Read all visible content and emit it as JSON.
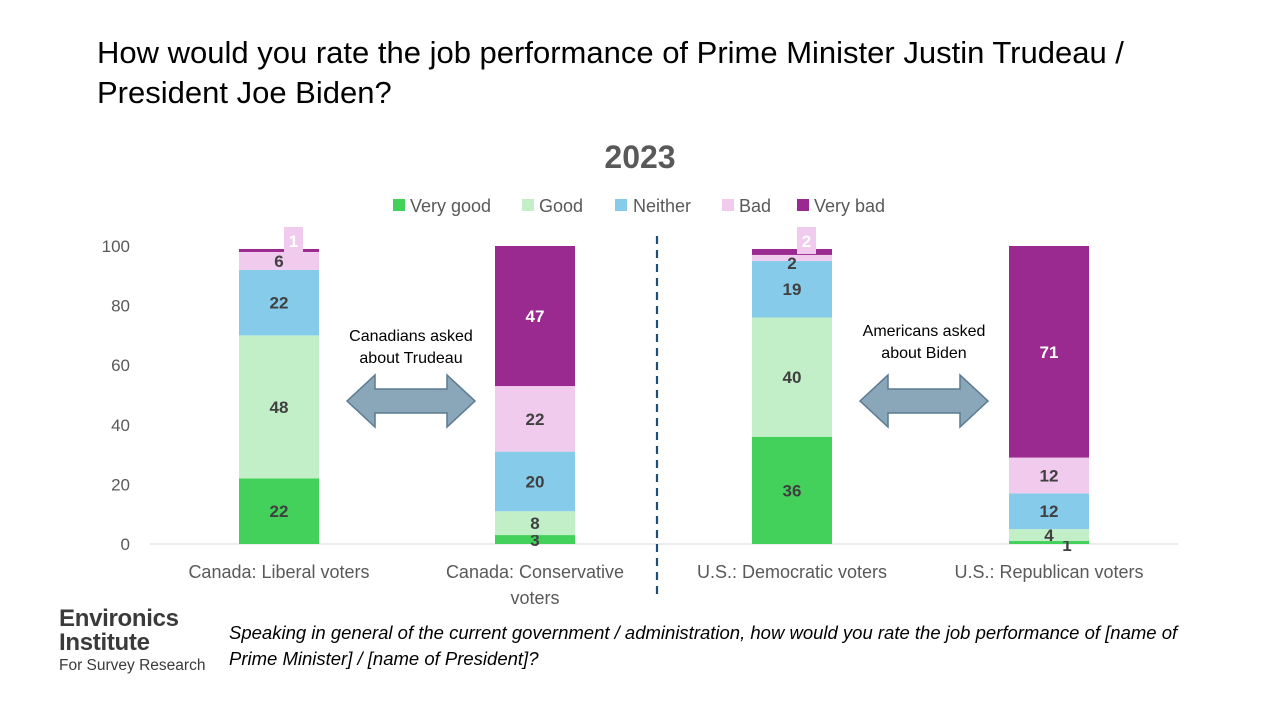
{
  "headline": "How would you rate the job performance of Prime Minister Justin Trudeau / President Joe Biden?",
  "footnote": "Speaking in general of the current government / administration, how would you rate the job performance of [name of Prime Minister] / [name of President]?",
  "logo": {
    "line1": "Environics",
    "line2": "Institute",
    "line3": "For Survey Research"
  },
  "chart_data": {
    "type": "bar",
    "stacked": true,
    "title": "2023",
    "ylim": [
      0,
      100
    ],
    "yticks": [
      0,
      20,
      40,
      60,
      80,
      100
    ],
    "categories": [
      [
        "Canada: Liberal voters"
      ],
      [
        "Canada: Conservative",
        "voters"
      ],
      [
        "U.S.: Democratic voters"
      ],
      [
        "U.S.: Republican voters"
      ]
    ],
    "legend_position": "top",
    "series": [
      {
        "name": "Very good",
        "color": "#43d15b",
        "values": [
          22,
          3,
          36,
          1
        ]
      },
      {
        "name": "Good",
        "color": "#c2efc8",
        "values": [
          48,
          8,
          40,
          4
        ]
      },
      {
        "name": "Neither",
        "color": "#86cbea",
        "values": [
          22,
          20,
          19,
          12
        ]
      },
      {
        "name": "Bad",
        "color": "#f1cbee",
        "values": [
          6,
          22,
          2,
          12
        ]
      },
      {
        "name": "Very bad",
        "color": "#9a2a8f",
        "values": [
          1,
          47,
          2,
          71
        ]
      }
    ],
    "annotations": [
      {
        "lines": [
          "Canadians asked",
          "about Trudeau"
        ]
      },
      {
        "lines": [
          "Americans asked",
          "about Biden"
        ]
      }
    ]
  }
}
